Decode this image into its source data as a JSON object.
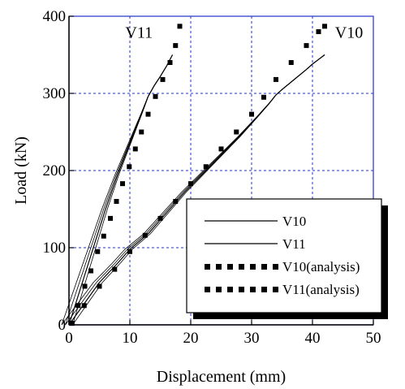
{
  "chart_data": {
    "type": "line",
    "title": "",
    "xlabel": "Displacement (mm)",
    "ylabel": "Load (kN)",
    "xlim": [
      0,
      50
    ],
    "ylim": [
      0,
      400
    ],
    "xticks": [
      0,
      10,
      20,
      30,
      40,
      50
    ],
    "yticks": [
      0,
      100,
      200,
      300,
      400
    ],
    "grid": true,
    "legend_position": "bottom-right",
    "annotations": [
      {
        "text": "V11",
        "x": 11.5,
        "y": 372
      },
      {
        "text": "V10",
        "x": 46,
        "y": 372
      }
    ],
    "series": [
      {
        "name": "V10",
        "style": "solid",
        "color": "#000000",
        "x": [
          0,
          2,
          5,
          8,
          10,
          13,
          16,
          19,
          22,
          25,
          28,
          31,
          33,
          34,
          35,
          37,
          39,
          40,
          41,
          42
        ],
        "y": [
          0,
          22,
          55,
          80,
          98,
          118,
          145,
          172,
          196,
          220,
          244,
          270,
          288,
          298,
          305,
          318,
          331,
          338,
          344,
          350
        ]
      },
      {
        "name": "V11",
        "style": "solid",
        "color": "#000000",
        "x": [
          0,
          1,
          2,
          4,
          6,
          8,
          10,
          12,
          13,
          14,
          15,
          16,
          17
        ],
        "y": [
          0,
          25,
          50,
          100,
          150,
          195,
          235,
          275,
          296,
          310,
          322,
          335,
          350
        ]
      },
      {
        "name": "V10(analysis)",
        "style": "dotted",
        "color": "#000000",
        "x": [
          0.5,
          2.5,
          5,
          7.5,
          10,
          12.5,
          15,
          17.5,
          20,
          22.5,
          25,
          27.5,
          30,
          32,
          34,
          36.5,
          39,
          41,
          42
        ],
        "y": [
          2,
          25,
          50,
          72,
          95,
          116,
          138,
          160,
          183,
          205,
          228,
          250,
          273,
          295,
          318,
          340,
          362,
          380,
          387
        ]
      },
      {
        "name": "V11(analysis)",
        "style": "dotted",
        "color": "#000000",
        "x": [
          0.5,
          1.5,
          2.6,
          3.6,
          4.7,
          5.7,
          6.8,
          7.8,
          8.8,
          9.9,
          10.9,
          11.9,
          13,
          14.2,
          15.4,
          16.6,
          17.5,
          18.2
        ],
        "y": [
          2,
          25,
          50,
          70,
          95,
          115,
          138,
          160,
          183,
          205,
          228,
          250,
          273,
          296,
          318,
          340,
          362,
          387
        ]
      }
    ]
  }
}
